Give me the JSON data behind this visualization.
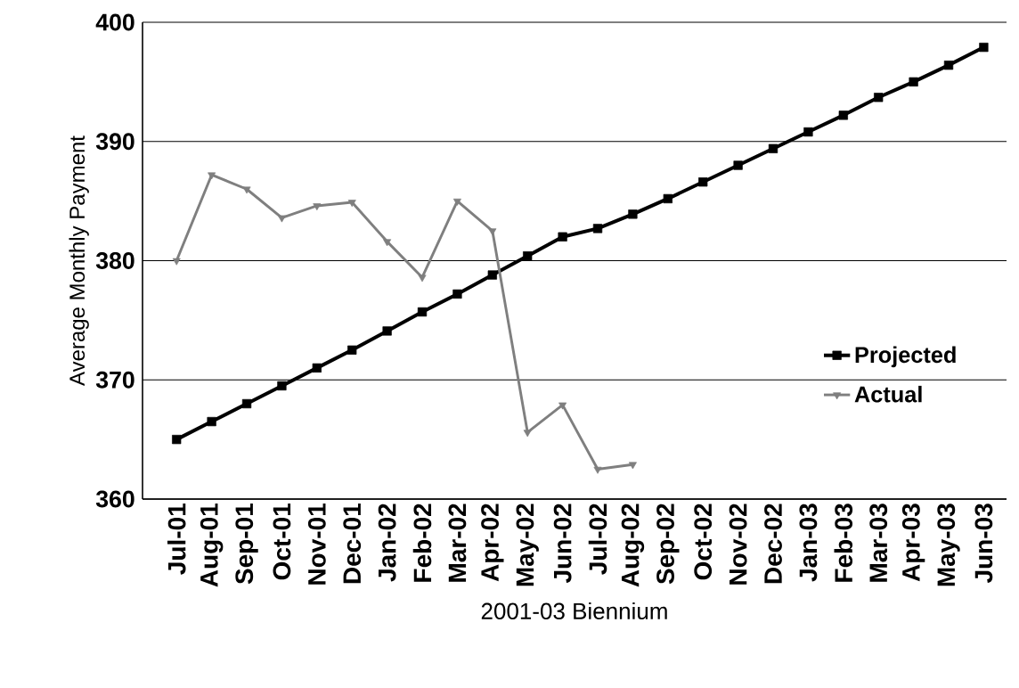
{
  "chart_data": {
    "type": "line",
    "xlabel": "2001-03 Biennium",
    "ylabel": "Average Monthly Payment",
    "categories": [
      "Jul-01",
      "Aug-01",
      "Sep-01",
      "Oct-01",
      "Nov-01",
      "Dec-01",
      "Jan-02",
      "Feb-02",
      "Mar-02",
      "Apr-02",
      "May-02",
      "Jun-02",
      "Jul-02",
      "Aug-02",
      "Sep-02",
      "Oct-02",
      "Nov-02",
      "Dec-02",
      "Jan-03",
      "Feb-03",
      "Mar-03",
      "Apr-03",
      "May-03",
      "Jun-03"
    ],
    "series": [
      {
        "name": "Projected",
        "color": "#000000",
        "marker": "square",
        "values": [
          365.0,
          366.5,
          368.0,
          369.5,
          371.0,
          372.5,
          374.1,
          375.7,
          377.2,
          378.8,
          380.4,
          382.0,
          382.7,
          383.9,
          385.2,
          386.6,
          388.0,
          389.4,
          390.8,
          392.2,
          393.7,
          395.0,
          396.4,
          397.9
        ]
      },
      {
        "name": "Actual",
        "color": "#7f7f7f",
        "marker": "triangle",
        "values": [
          380.0,
          387.2,
          386.0,
          383.6,
          384.6,
          384.9,
          381.6,
          378.6,
          385.0,
          382.5,
          365.6,
          367.9,
          362.5,
          362.9,
          null,
          null,
          null,
          null,
          null,
          null,
          null,
          null,
          null,
          null
        ]
      }
    ],
    "ylim": [
      360,
      400
    ],
    "yticks": [
      360,
      370,
      380,
      390,
      400
    ],
    "grid": "y",
    "legend": "right",
    "line_style": "solid"
  }
}
